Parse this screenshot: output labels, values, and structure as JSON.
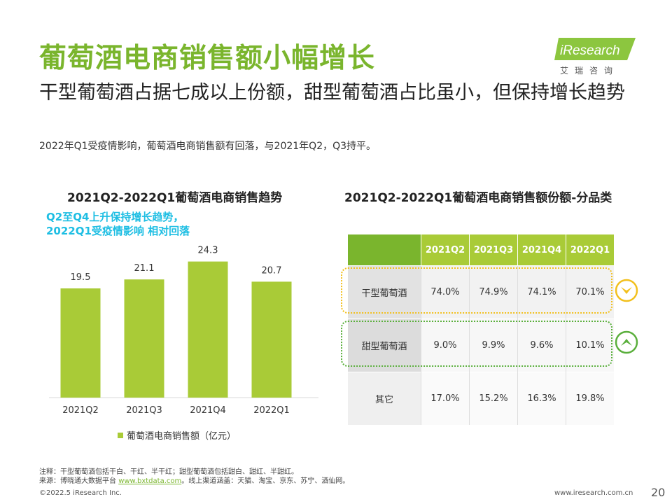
{
  "title": "葡萄酒电商销售额小幅增长",
  "subtitle": "干型葡萄酒占据七成以上份额，甜型葡萄酒占比虽小，但保持增长趋势",
  "description": "2022年Q1受疫情影响，葡萄酒电商销售额有回落，与2021年Q2，Q3持平。",
  "logo": {
    "brand": "iResearch",
    "sub": "艾瑞咨询"
  },
  "left_chart": {
    "title": "2021Q2-2022Q1葡萄酒电商销售趋势",
    "annotation_line1": "Q2至Q4上升保持增长趋势，",
    "annotation_line2": "2022Q1受疫情影响 相对回落",
    "legend": "葡萄酒电商销售额（亿元）"
  },
  "chart_data": {
    "type": "bar",
    "title": "2021Q2-2022Q1葡萄酒电商销售趋势",
    "categories": [
      "2021Q2",
      "2021Q3",
      "2021Q4",
      "2022Q1"
    ],
    "series": [
      {
        "name": "葡萄酒电商销售额（亿元）",
        "values": [
          19.5,
          21.1,
          24.3,
          20.7
        ],
        "color": "#a9cb37"
      }
    ],
    "ylim": [
      0,
      26
    ],
    "grid": false,
    "legend": "bottom"
  },
  "right_table": {
    "title": "2021Q2-2022Q1葡萄酒电商销售额份额-分品类",
    "columns": [
      "2021Q2",
      "2021Q3",
      "2021Q4",
      "2022Q1"
    ],
    "rows": [
      {
        "label": "干型葡萄酒",
        "values": [
          "74.0%",
          "74.9%",
          "74.1%",
          "70.1%"
        ],
        "trend": "down",
        "color": "#f2c01d"
      },
      {
        "label": "甜型葡萄酒",
        "values": [
          "9.0%",
          "9.9%",
          "9.6%",
          "10.1%"
        ],
        "trend": "up",
        "color": "#5aaf3c"
      },
      {
        "label": "其它",
        "values": [
          "17.0%",
          "15.2%",
          "16.3%",
          "19.8%"
        ]
      }
    ]
  },
  "notes": {
    "note": "注释：干型葡萄酒包括干白、干红、半干红；甜型葡萄酒包括甜白、甜红、半甜红。",
    "source_prefix": "来源：博晓通大数据平台 ",
    "source_link": "www.bxtdata.com",
    "source_suffix": "。线上渠道涵盖：天猫、淘宝、京东、苏宁、酒仙网。"
  },
  "footer": {
    "copyright": "©2022.5 iResearch Inc.",
    "website": "www.iresearch.com.cn",
    "page": "20"
  }
}
